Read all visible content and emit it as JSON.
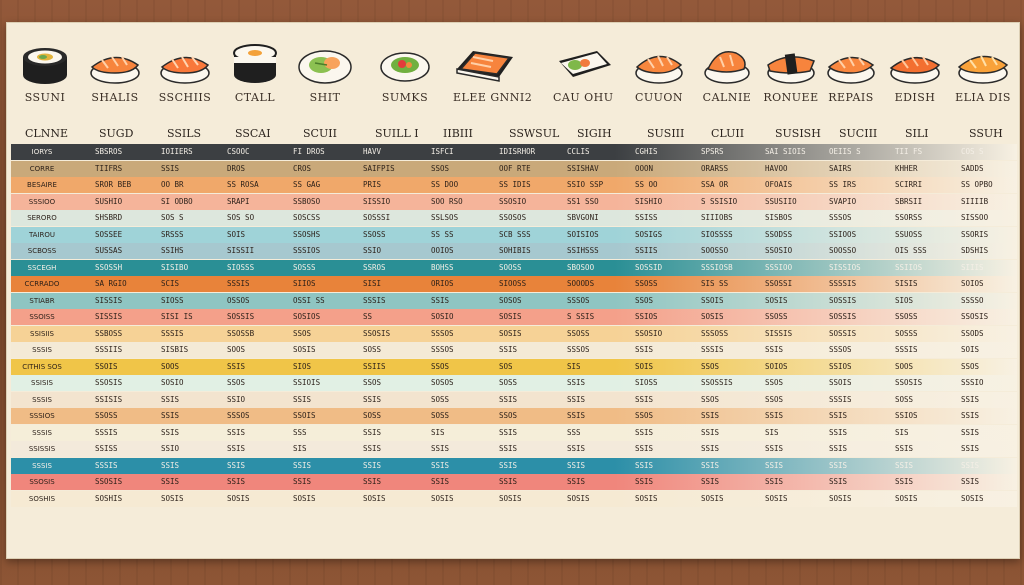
{
  "icon_names": [
    "SSUNI",
    "SHALIS",
    "SSCHIIS",
    "CTALL",
    "SHIT",
    "SUMKS",
    "ELEE GNNI2",
    "CAU OHU",
    "CUUON",
    "CALNIE",
    "RONUEE",
    "REPAIS",
    "EDISH",
    "ELIA DIS"
  ],
  "col_headers": [
    "CLNNE",
    "SUGD",
    "SSILS",
    "SSCAI",
    "SCUII",
    "SUILL I",
    "IIBIII",
    "SSWSUL",
    "SIGIH",
    "SUSIII",
    "CLUII",
    "SUSISH",
    "SUCIII",
    "SILI",
    "SSUH"
  ],
  "rows": [
    {
      "label": "IORYS",
      "color": "#3c3f42",
      "dark": true,
      "cells": [
        "SBSROS",
        "IOIIERS",
        "CSOOC",
        "FI DROS",
        "HAVV",
        "ISFCI",
        "IDISRHOR",
        "CCLIS",
        "CGHIS",
        "SPSRS",
        "SAI SIOIS",
        "OEIIS S",
        "TII  FS",
        "COS S"
      ]
    },
    {
      "label": "CORRE",
      "color": "#c9a97a",
      "cells": [
        "TIIFRS",
        "SSIS",
        "DROS",
        "CROS",
        "SAIFPIS",
        "SSOS",
        "OOF RTE",
        "SSISHAV",
        "OOON",
        "ORARSS",
        "HAVOO",
        "SAIRS",
        "KHHER",
        "SADDS"
      ]
    },
    {
      "label": "BESAIRE",
      "color": "#f0a86a",
      "cells": [
        "SROR BEB",
        "OO BR",
        "SS ROSA",
        "SS GAG",
        "PRIS",
        "SS DOO",
        "SS IDIS",
        "SSIO SSP",
        "SS OO",
        "SSA OR",
        "OFOAIS",
        "SS IRS",
        "SCIRRI",
        "SS OPBO"
      ]
    },
    {
      "label": "SSSIOO",
      "color": "#f5b49a",
      "cells": [
        "SUSHIO",
        "SI ODBO",
        "SRAPI",
        "SSBOSO",
        "SISSIO",
        "SOO RSO",
        "SSOSIO",
        "SS1 SSO",
        "SISHIO",
        "S SSISIO",
        "SSUSIIO",
        "SVAPIO",
        "SBRSII",
        "SIIIIB"
      ]
    },
    {
      "label": "SERORO",
      "color": "#dde7dd",
      "cells": [
        "SHSBRD",
        "SOS S",
        "SOS SO",
        "SOSCSS",
        "SOSSSI",
        "SSLSOS",
        "SSOSOS",
        "SBVGONI",
        "SSISS",
        "SIIIOBS",
        "SISBOS",
        "SSSOS",
        "SSORSS",
        "SISSOO"
      ]
    },
    {
      "label": "TAIROU",
      "color": "#9fd3d8",
      "cells": [
        "SOSSEE",
        "SRSSS",
        "SOIS",
        "SSOSHS",
        "SSOSS",
        "SS SS",
        "SCB SSS",
        "SOISIOS",
        "SOSIGS",
        "SIOSSSS",
        "SSODSS",
        "SSIOOS",
        "SSUOSS",
        "SSORIS"
      ]
    },
    {
      "label": "SCBOSS",
      "color": "#a6c8cf",
      "cells": [
        "SUSSAS",
        "SSIHS",
        "SISSII",
        "SSSIOS",
        "SSIO",
        "OOIOS",
        "SOHIBIS",
        "SSIHSSS",
        "SSIIS",
        "SOOSSO",
        "SSOSIO",
        "SOOSSO",
        "OIS SSS",
        "SDSHIS"
      ]
    },
    {
      "label": "SSCEGH",
      "color": "#2a8f95",
      "dark": true,
      "cells": [
        "SSOSSH",
        "SISIBO",
        "SIOSSS",
        "SOSSS",
        "SSROS",
        "BOHSS",
        "SOOSS",
        "SBOSOO",
        "SOSSID",
        "SSSIOSB",
        "SSSIOO",
        "SISSIOS",
        "SSIIOS",
        "SIIIS"
      ]
    },
    {
      "label": "CCRRADO",
      "color": "#e8833a",
      "cells": [
        "SA RGIO",
        "SCIS",
        "SSSIS",
        "SIIOS",
        "SISI",
        "ORIOS",
        "SIOOSS",
        "SOOODS",
        "SSOSS",
        "SIS SS",
        "SSOSSI",
        "SSSSIS",
        "SISIS",
        "SOIOS"
      ]
    },
    {
      "label": "STIABR",
      "color": "#8fc5c2",
      "cells": [
        "SISSIS",
        "SIOSS",
        "OSSOS",
        "OSSI SS",
        "SSSIS",
        "SSIS",
        "SOSOS",
        "SSSOS",
        "SSOS",
        "SSOIS",
        "SOSIS",
        "SOSSIS",
        "SIOS",
        "SSSSO"
      ]
    },
    {
      "label": "SSOISS",
      "color": "#f4a08a",
      "cells": [
        "SISSIS",
        "SISI IS",
        "SOSSIS",
        "SOSIOS",
        "SS",
        "SOSIO",
        "SOSIS",
        "S SSIS",
        "SSIOS",
        "SOSIS",
        "SSOSS",
        "SOSSIS",
        "SSOSS",
        "SSOSIS"
      ]
    },
    {
      "label": "SSISIIS",
      "color": "#f6d296",
      "cells": [
        "SSBOSS",
        "SSSIS",
        "SSOSSB",
        "SSOS",
        "SSOSIS",
        "SSSOS",
        "SOSIS",
        "SSOSS",
        "SSOSIO",
        "SSSOSS",
        "SISSIS",
        "SOSSIS",
        "SOSSS",
        "SSODS"
      ]
    },
    {
      "label": "SSSIS",
      "color": "#f4ead6",
      "cells": [
        "SSSIIS",
        "SISBIS",
        "SOOS",
        "SOSIS",
        "SOSS",
        "SSSOS",
        "SSIS",
        "SSSOS",
        "SSIS",
        "SSSIS",
        "SSIS",
        "SSSOS",
        "SSSIS",
        "SOIS"
      ]
    },
    {
      "label": "CITHIS SOS",
      "color": "#f0c548",
      "cells": [
        "SSOIS",
        "SOOS",
        "SSIS",
        "SIOS",
        "SSIIS",
        "SSOS",
        "SOS",
        "SIS",
        "SOIS",
        "SSOS",
        "SOIOS",
        "SSIOS",
        "SOOS",
        "SSOS"
      ]
    },
    {
      "label": "SSISIS",
      "color": "#e1f0e4",
      "cells": [
        "SSOSIS",
        "SOSIO",
        "SSOS",
        "SSIOIS",
        "SSOS",
        "SOSOS",
        "SOSS",
        "SSIS",
        "SIOSS",
        "SSOSSIS",
        "SSOS",
        "SSOIS",
        "SSOSIS",
        "SSSIO"
      ]
    },
    {
      "label": "SSSIS",
      "color": "#f3e4cf",
      "cells": [
        "SSISIS",
        "SSIS",
        "SSIO",
        "SSIS",
        "SSIS",
        "SOSS",
        "SSIS",
        "SSIS",
        "SSIS",
        "SSOS",
        "SSOS",
        "SSSIS",
        "SOSS",
        "SSIS"
      ]
    },
    {
      "label": "SSSIOS",
      "color": "#f0bc86",
      "cells": [
        "SSOSS",
        "SSIS",
        "SSSOS",
        "SSOIS",
        "SOSS",
        "SOSS",
        "SSOS",
        "SSIS",
        "SSOS",
        "SSIS",
        "SSIS",
        "SSIS",
        "SSIOS",
        "SSIS"
      ]
    },
    {
      "label": "SSSIS",
      "color": "#f5eed9",
      "cells": [
        "SSSIS",
        "SSIS",
        "SSIS",
        "SSS",
        "SSIS",
        "SIS",
        "SSIS",
        "SSS",
        "SSIS",
        "SSIS",
        "SIS",
        "SSIS",
        "SIS",
        "SSIS"
      ]
    },
    {
      "label": "SSISSIS",
      "color": "#f3eadb",
      "cells": [
        "SSISS",
        "SSIO",
        "SSIS",
        "SIS",
        "SSIS",
        "SSIS",
        "SSIS",
        "SSIS",
        "SSIS",
        "SSIS",
        "SSIS",
        "SSIS",
        "SSIS",
        "SSIS"
      ]
    },
    {
      "label": "SSSIS",
      "color": "#2c8fa8",
      "dark": true,
      "cells": [
        "SSSIS",
        "SSIS",
        "SSIS",
        "SSIS",
        "SSIS",
        "SSIS",
        "SSIS",
        "SSIS",
        "SSIS",
        "SSIS",
        "SSIS",
        "SSIS",
        "SSIS",
        "SSIS"
      ]
    },
    {
      "label": "SSOSIS",
      "color": "#f0867c",
      "cells": [
        "SSOSIS",
        "SSIS",
        "SSIS",
        "SSIS",
        "SSIS",
        "SSIS",
        "SSIS",
        "SSIS",
        "SSIS",
        "SSIS",
        "SSIS",
        "SSIS",
        "SSIS",
        "SSIS"
      ]
    },
    {
      "label": "SOSHIS",
      "color": "#f6ead3",
      "cells": [
        "SOSHIS",
        "SOSIS",
        "SOSIS",
        "SOSIS",
        "SOSIS",
        "SOSIS",
        "SOSIS",
        "SOSIS",
        "SOSIS",
        "SOSIS",
        "SOSIS",
        "SOSIS",
        "SOSIS",
        "SOSIS"
      ]
    }
  ]
}
